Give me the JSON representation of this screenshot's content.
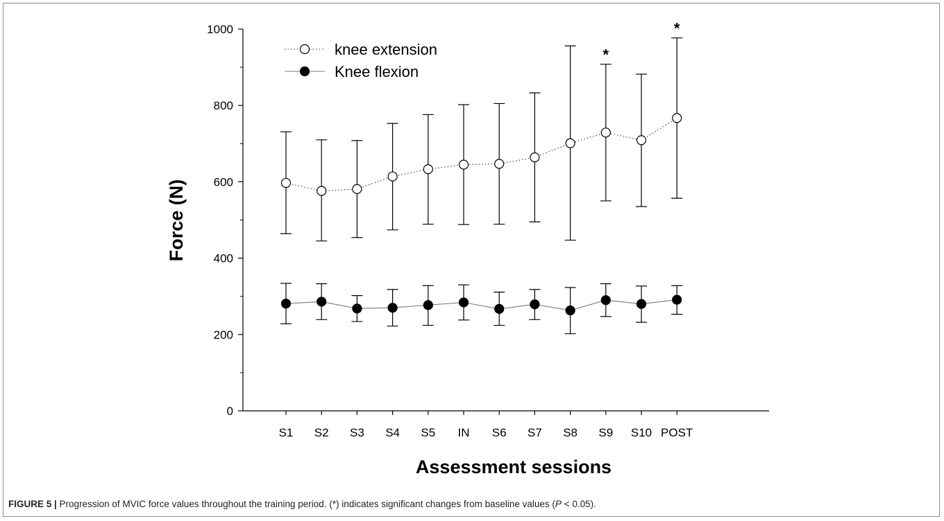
{
  "caption": {
    "label": "FIGURE 5 |",
    "text_before": " Progression of MVIC force values throughout the training period. (*) indicates significant changes from baseline values (",
    "p_symbol": "P",
    "text_after": " < 0.05)."
  },
  "chart_data": {
    "type": "line",
    "title": "",
    "xlabel": "Assessment sessions",
    "ylabel": "Force (N)",
    "categories": [
      "S1",
      "S2",
      "S3",
      "S4",
      "S5",
      "IN",
      "S6",
      "S7",
      "S8",
      "S9",
      "S10",
      "POST"
    ],
    "ylim": [
      0,
      1000
    ],
    "yticks": [
      0,
      200,
      400,
      600,
      800,
      1000
    ],
    "grid": false,
    "legend_position": "top-left",
    "series": [
      {
        "name": "knee extension",
        "marker": "open-circle",
        "line_style": "dotted",
        "values": [
          597,
          576,
          581,
          614,
          633,
          645,
          647,
          664,
          701,
          729,
          709,
          767
        ],
        "error_upper": [
          731,
          710,
          708,
          753,
          776,
          802,
          805,
          833,
          956,
          908,
          882,
          977
        ],
        "error_lower": [
          464,
          445,
          454,
          474,
          489,
          488,
          489,
          495,
          447,
          550,
          535,
          557
        ]
      },
      {
        "name": "Knee flexion",
        "marker": "filled-circle",
        "line_style": "solid",
        "values": [
          281,
          286,
          268,
          270,
          277,
          284,
          267,
          279,
          263,
          290,
          280,
          291
        ],
        "error_upper": [
          334,
          333,
          302,
          318,
          328,
          330,
          311,
          318,
          323,
          333,
          327,
          328
        ],
        "error_lower": [
          228,
          239,
          234,
          222,
          224,
          238,
          224,
          239,
          202,
          247,
          232,
          253
        ]
      }
    ],
    "annotations": [
      {
        "category": "S9",
        "text": "*"
      },
      {
        "category": "POST",
        "text": "*"
      }
    ]
  }
}
